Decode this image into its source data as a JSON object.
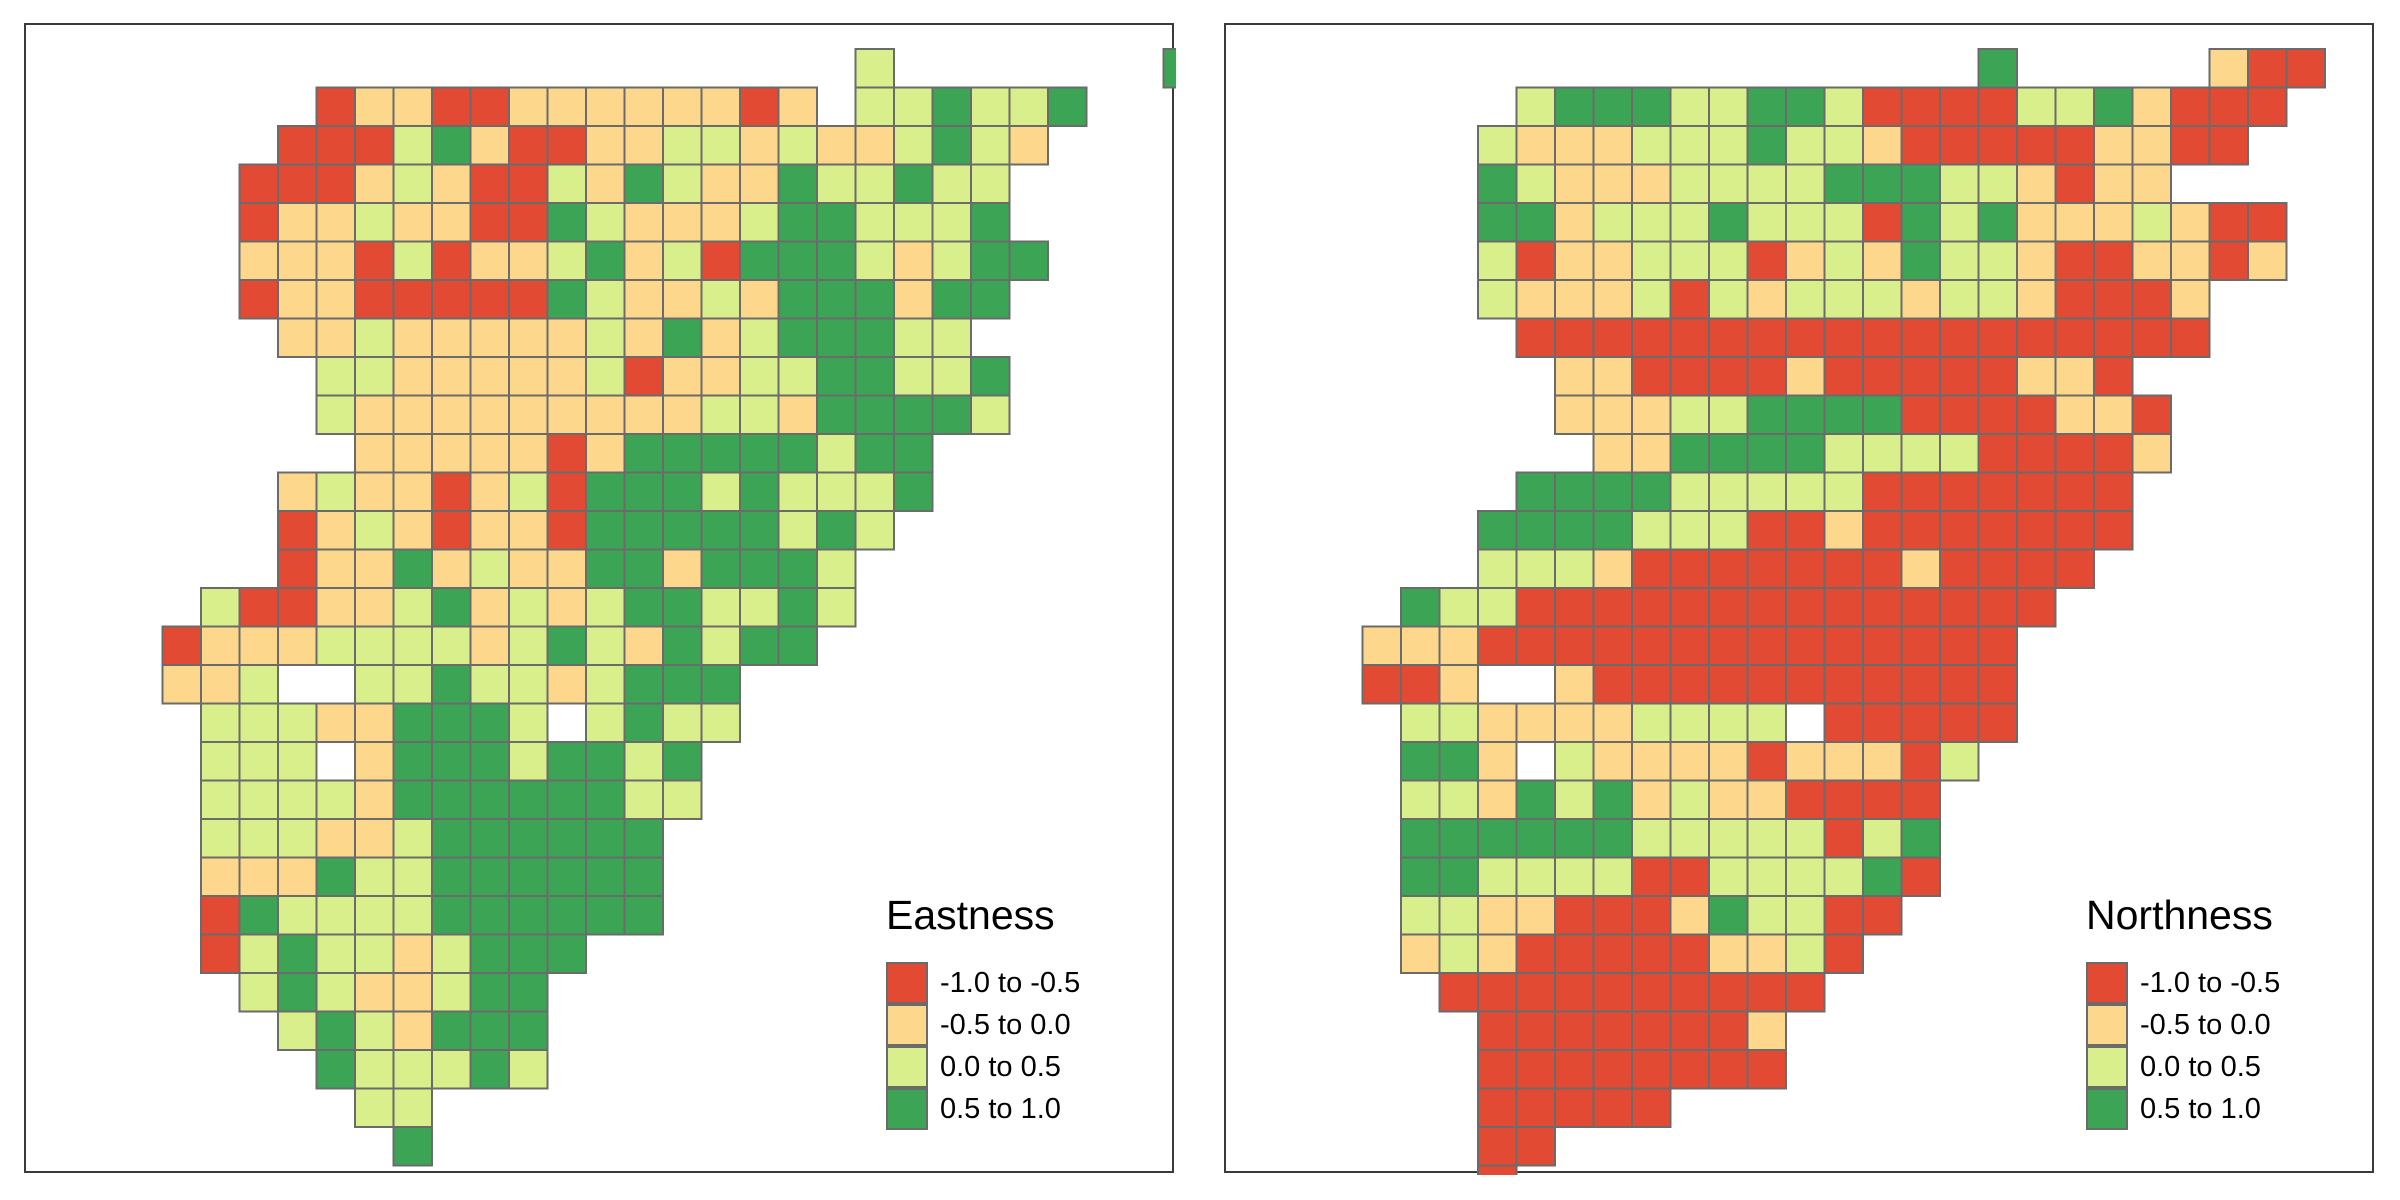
{
  "classes": [
    {
      "label": "-1.0 to -0.5",
      "color": "#e34a33"
    },
    {
      "label": "-0.5 to 0.0",
      "color": "#fdd88c"
    },
    {
      "label": "0.0 to 0.5",
      "color": "#d9ef8b"
    },
    {
      "label": "0.5 to 1.0",
      "color": "#3ca455"
    }
  ],
  "cell_border_color": "#6b6b6b",
  "maps": [
    {
      "title": "Eastness",
      "grid": [
        "...................C.......DDA...",
        ".....ABBAABBBBBBAB.CCDCCD...",
        "....AAACDBAABBCCBCBBCDCB",
        "...AAABCBAACBDCBBDCCDCC",
        "...ABBCBBAADCBBBCDDCCCD",
        "...BBBACABBCDBCADDDCBCDD",
        "...ABBAAAAADCBBCBDDDBDD",
        "....BBCBBBBBCBDBCDDDCC",
        ".....CCBBBBBCABBCCDDCCD",
        ".....CBBBBBBBBBCCBDDDDC",
        "......BBBBBABDDDDDCDD",
        "....BCBBABCADDDCDCCCD",
        "....ABCBABBADDDDDCDC",
        "....ABBDBCBBDDBDDDC",
        "..CAABBCDBCBCDDCCDC",
        ".ABBBCCCCBCDCBDCDD",
        ".BBC..CCDCCBCDDD",
        "..CCCBBDDDC.CDCC",
        "..CCC.BDDDCDDCD",
        "..CCCCBDDDDDDCC",
        "..CCCBBCDDDDDD",
        "..BBBDCCDDDDDD",
        "..ADCCCCDDDDDD",
        "..ACDCCBCDDD",
        "...CDCBBCDD",
        "....CDCBDDD",
        ".....DCCCDC",
        "......CC",
        ".......D"
      ]
    },
    {
      "title": "Northness",
      "grid": [
        ".................D.....BAA..",
        ".....CDDDCCDDCAAAACCDBAAA",
        "....CBBBCCCDCCBAAAAABBAA",
        "....DCBBBCCCCDDDCCBABB",
        "....DDBCCCDCCCADCDBBBCBAA",
        "....CABBCCCABCBDCCBAABBAB",
        "....CBBBCACBCCCBCCBAAAB",
        ".....AAAAAAAAAAAAAAAAAA",
        "......BBAAAABAAAAABBA",
        "......BBBCCDDDDAAAABBA",
        ".......BBDDDDCCCCAAAAB",
        ".....DDDDCCCCCAAAAAAA",
        "....DDDDCCCAABAAAAAAA",
        "....CCCBAAAAAAABAAAA",
        "..DCCAAAAAAAAAAAAAA",
        ".BBBAAAAAAAAAAAAAA",
        ".AAB..BAAAAAAAAAAA",
        "..CCBBBBCCCC.AAAAA",
        "..DDB.CBBBBABBBAC",
        "..CCBDCDBCBBAAAA",
        "..DDDDDDCCCCCACD",
        "..DDCCCCAACCCCDA",
        "..CCBBAAABDCCAA",
        "..BCBAAAAABBCA",
        "...AAAAAAAAAA",
        "....AAAAAAAB",
        "....AAAAAAAA",
        "....AAAAA",
        "....AA",
        "....A"
      ]
    }
  ]
}
